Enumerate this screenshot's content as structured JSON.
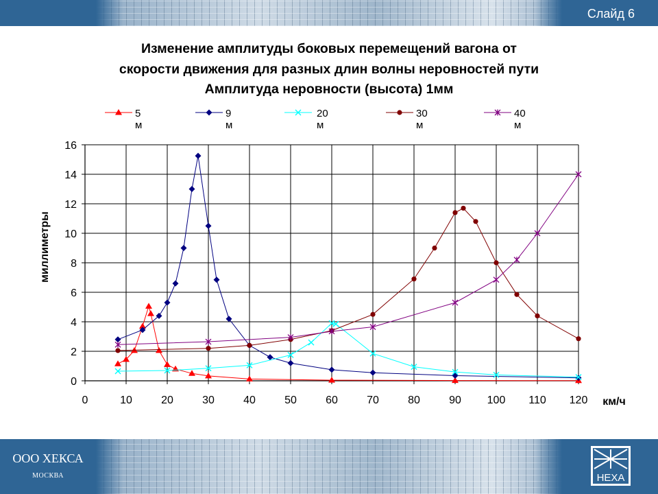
{
  "slide_label": "Слайд 6",
  "company": {
    "name": "ООО ХЕКСА",
    "city": "МОСКВА",
    "logo_text": "HEXA"
  },
  "chart_data": {
    "type": "line",
    "title_lines": [
      "Изменение амплитуды боковых перемещений вагона от",
      "скорости движения для разных длин волны неровностей пути",
      "Амплитуда неровности (высота) 1мм"
    ],
    "xlabel": "км/ч",
    "ylabel": "миллиметры",
    "xlim": [
      0,
      120
    ],
    "ylim": [
      0,
      16
    ],
    "x_ticks": [
      "0",
      "10",
      "20",
      "30",
      "40",
      "50",
      "60",
      "70",
      "80",
      "90",
      "100",
      "110",
      "120"
    ],
    "y_ticks": [
      "0",
      "2",
      "4",
      "6",
      "8",
      "10",
      "12",
      "14",
      "16"
    ],
    "grid": true,
    "legend_position": "top",
    "series": [
      {
        "name": "5 м",
        "color": "#ff0000",
        "marker": "triangle",
        "x": [
          8,
          10,
          12,
          14,
          15.5,
          16,
          18,
          20,
          22,
          26,
          30,
          40,
          60,
          90,
          120
        ],
        "y": [
          1.15,
          1.45,
          2.05,
          3.7,
          5.05,
          4.55,
          2.05,
          1.1,
          0.8,
          0.5,
          0.33,
          0.12,
          0.04,
          0.02,
          0.01
        ]
      },
      {
        "name": "9 м",
        "color": "#000080",
        "marker": "diamond",
        "x": [
          8,
          14,
          18,
          20,
          22,
          24,
          26,
          27.5,
          30,
          32,
          35,
          40,
          45,
          50,
          60,
          70,
          90,
          120
        ],
        "y": [
          2.8,
          3.45,
          4.4,
          5.3,
          6.6,
          9.0,
          13.0,
          15.25,
          10.5,
          6.85,
          4.2,
          2.4,
          1.6,
          1.2,
          0.75,
          0.55,
          0.35,
          0.2
        ]
      },
      {
        "name": "20 м",
        "color": "#00ffff",
        "marker": "x",
        "x": [
          8,
          20,
          30,
          40,
          50,
          55,
          60,
          61,
          70,
          80,
          90,
          100,
          120
        ],
        "y": [
          0.65,
          0.7,
          0.85,
          1.05,
          1.75,
          2.6,
          3.9,
          3.85,
          1.85,
          0.95,
          0.6,
          0.4,
          0.25
        ]
      },
      {
        "name": "30 м",
        "color": "#800000",
        "marker": "circle",
        "x": [
          8,
          30,
          40,
          50,
          60,
          70,
          80,
          85,
          90,
          92,
          95,
          100,
          105,
          110,
          120
        ],
        "y": [
          2.05,
          2.2,
          2.4,
          2.8,
          3.4,
          4.5,
          6.9,
          9.0,
          11.4,
          11.7,
          10.8,
          8.0,
          5.85,
          4.4,
          2.85
        ]
      },
      {
        "name": "40 м",
        "color": "#800080",
        "marker": "star",
        "x": [
          8,
          30,
          50,
          60,
          70,
          90,
          100,
          105,
          110,
          120
        ],
        "y": [
          2.45,
          2.65,
          2.95,
          3.35,
          3.65,
          5.3,
          6.85,
          8.2,
          10.0,
          14.0
        ]
      }
    ]
  }
}
